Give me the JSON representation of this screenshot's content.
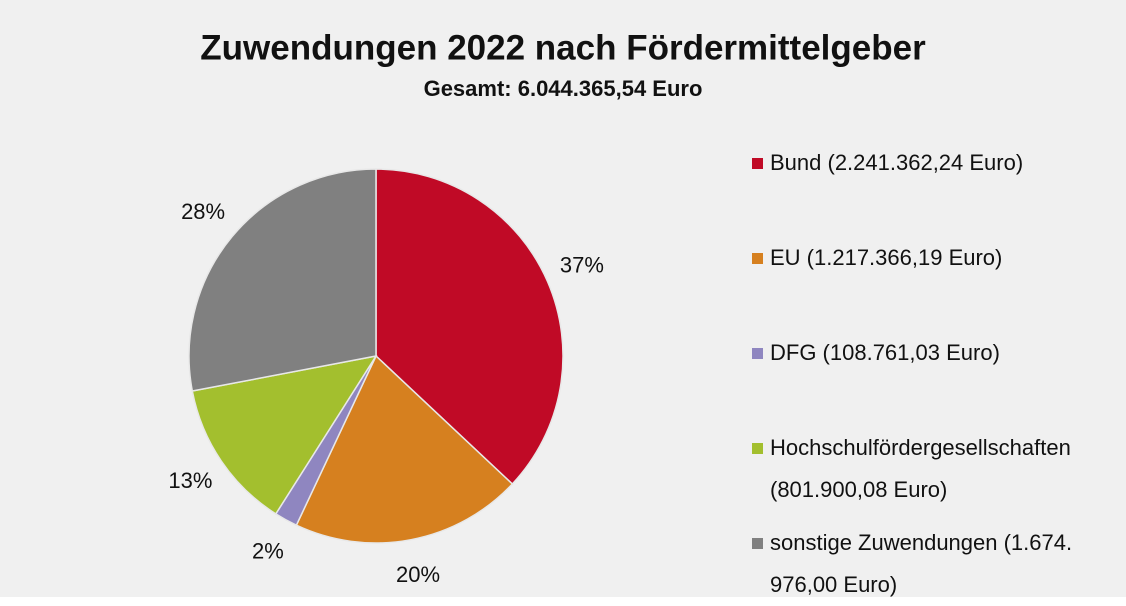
{
  "chart_data": {
    "type": "pie",
    "title": "Zuwendungen 2022 nach Fördermittelgeber",
    "subtitle": "Gesamt: 6.044.365,54 Euro",
    "categories": [
      "Bund (2.241.362,24 Euro)",
      "EU (1.217.366,19 Euro)",
      "DFG (108.761,03 Euro)",
      "Hochschulfördergesellschaften (801.900,08 Euro)",
      "sonstige Zuwendungen (1.674.976,00 Euro)"
    ],
    "values": [
      37,
      20,
      2,
      13,
      28
    ],
    "value_labels": [
      "37%",
      "20%",
      "2%",
      "13%",
      "28%"
    ],
    "colors": [
      "#c00a26",
      "#d6801f",
      "#8f86c0",
      "#a3bf2e",
      "#808080"
    ],
    "legend": "right"
  }
}
